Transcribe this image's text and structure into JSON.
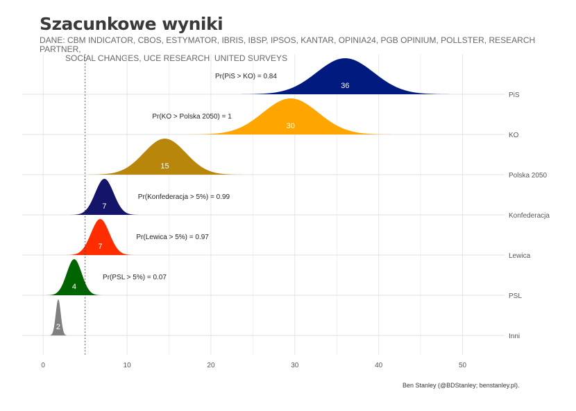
{
  "title": "Szacunkowe wyniki",
  "subtitle_line1": "DANE: CBM INDICATOR, CBOS, ESTYMATOR, IBRIS, IBSP, IPSOS, KANTAR, OPINIA24, PGB OPINIUM, POLLSTER, RESEARCH PARTNER,",
  "subtitle_line2": "SOCIAL CHANGES, UCE RESEARCH, UNITED SURVEYS",
  "credit": "Ben Stanley (@BDStanley; benstanley.pl).",
  "chart_data": {
    "type": "ridgeline",
    "xlim": [
      -2.5,
      55
    ],
    "x_ticks": [
      0,
      10,
      20,
      30,
      40,
      50
    ],
    "threshold": 5,
    "grid": true,
    "series": [
      {
        "name": "PiS",
        "mean": 36,
        "sd": 3.4,
        "color": "#001a80",
        "label": "36",
        "annotation": "Pr(PiS > KO)  =  0.84",
        "annotation_x": 20.5
      },
      {
        "name": "KO",
        "mean": 29.5,
        "sd": 3.3,
        "color": "#ffa500",
        "label": "30",
        "annotation": "Pr(KO > Polska 2050)  =  1",
        "annotation_x": 13
      },
      {
        "name": "Polska 2050",
        "mean": 14.5,
        "sd": 2.5,
        "color": "#b8860b",
        "label": "15",
        "annotation": "",
        "annotation_x": 0
      },
      {
        "name": "Konfederacja",
        "mean": 7.3,
        "sd": 1.1,
        "color": "#141469",
        "label": "7",
        "annotation": "Pr(Konfederacja > 5%)  =  0.99",
        "annotation_x": 11.3
      },
      {
        "name": "Lewica",
        "mean": 6.8,
        "sd": 1.1,
        "color": "#ff2d00",
        "label": "7",
        "annotation": "Pr(Lewica > 5%)  =  0.97",
        "annotation_x": 11.1
      },
      {
        "name": "PSL",
        "mean": 3.7,
        "sd": 0.9,
        "color": "#006400",
        "label": "4",
        "annotation": "Pr(PSL > 5%)  =  0.07",
        "annotation_x": 7.1
      },
      {
        "name": "Inni",
        "mean": 1.8,
        "sd": 0.3,
        "color": "#808080",
        "label": "2",
        "annotation": "",
        "annotation_x": 0
      }
    ]
  }
}
